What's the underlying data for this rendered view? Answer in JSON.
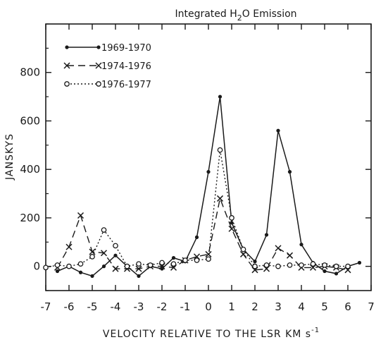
{
  "chart_data": {
    "type": "line",
    "title_parts": [
      "Integrated H",
      "2",
      "O  Emission"
    ],
    "xlabel": "VELOCITY   RELATIVE TO THE LSR   KM s",
    "xlabel_sup": "-1",
    "ylabel": "JANSKYS",
    "xlim": [
      -7,
      7
    ],
    "ylim": [
      -100,
      1000
    ],
    "xticks": [
      -7,
      -6,
      -5,
      -4,
      -3,
      -2,
      -1,
      0,
      1,
      2,
      3,
      4,
      5,
      6,
      7
    ],
    "xtick_labels": [
      "-7",
      "-6",
      "-5",
      "-4",
      "-3",
      "-2",
      "-1",
      "0",
      "1",
      "2",
      "3",
      "4",
      "5",
      "6",
      "7"
    ],
    "yticks": [
      0,
      200,
      400,
      600,
      800
    ],
    "ytick_labels": [
      "0",
      "200",
      "400",
      "600",
      "800"
    ],
    "grid": false,
    "legend_position": "top-left",
    "series": [
      {
        "name": "1969-1970",
        "style": "solid",
        "marker": "dot",
        "points": [
          [
            -6.5,
            -20
          ],
          [
            -6.0,
            0
          ],
          [
            -5.5,
            -25
          ],
          [
            -5.0,
            -40
          ],
          [
            -4.5,
            0
          ],
          [
            -4.0,
            45
          ],
          [
            -3.5,
            0
          ],
          [
            -3.0,
            -40
          ],
          [
            -2.5,
            0
          ],
          [
            -2.0,
            -10
          ],
          [
            -1.5,
            35
          ],
          [
            -1.0,
            20
          ],
          [
            -0.5,
            120
          ],
          [
            0.0,
            390
          ],
          [
            0.5,
            700
          ],
          [
            1.0,
            180
          ],
          [
            1.5,
            70
          ],
          [
            2.0,
            20
          ],
          [
            2.5,
            130
          ],
          [
            3.0,
            560
          ],
          [
            3.5,
            390
          ],
          [
            4.0,
            90
          ],
          [
            4.5,
            15
          ],
          [
            5.0,
            -20
          ],
          [
            5.5,
            -30
          ],
          [
            6.0,
            0
          ],
          [
            6.5,
            15
          ]
        ]
      },
      {
        "name": "1974-1976",
        "style": "dashed",
        "marker": "x",
        "points": [
          [
            -6.5,
            -5
          ],
          [
            -6.0,
            80
          ],
          [
            -5.5,
            210
          ],
          [
            -5.0,
            60
          ],
          [
            -4.5,
            55
          ],
          [
            -4.0,
            -10
          ],
          [
            -3.5,
            -10
          ],
          [
            -3.0,
            -10
          ],
          [
            -2.5,
            0
          ],
          [
            -2.0,
            0
          ],
          [
            -1.5,
            -5
          ],
          [
            -1.0,
            25
          ],
          [
            -0.5,
            40
          ],
          [
            0.0,
            50
          ],
          [
            0.5,
            280
          ],
          [
            1.0,
            155
          ],
          [
            1.5,
            50
          ],
          [
            2.0,
            -15
          ],
          [
            2.5,
            -10
          ],
          [
            3.0,
            75
          ],
          [
            3.5,
            45
          ],
          [
            4.0,
            -5
          ],
          [
            4.5,
            -5
          ],
          [
            5.0,
            0
          ],
          [
            5.5,
            -5
          ],
          [
            6.0,
            -15
          ]
        ]
      },
      {
        "name": "1976-1977",
        "style": "dotted",
        "marker": "circle",
        "points": [
          [
            -7.0,
            -5
          ],
          [
            -6.5,
            5
          ],
          [
            -6.0,
            0
          ],
          [
            -5.5,
            10
          ],
          [
            -5.0,
            40
          ],
          [
            -4.5,
            150
          ],
          [
            -4.0,
            85
          ],
          [
            -3.5,
            0
          ],
          [
            -3.0,
            10
          ],
          [
            -2.5,
            5
          ],
          [
            -2.0,
            15
          ],
          [
            -1.5,
            10
          ],
          [
            -1.0,
            25
          ],
          [
            -0.5,
            25
          ],
          [
            0.0,
            30
          ],
          [
            0.5,
            480
          ],
          [
            1.0,
            200
          ],
          [
            1.5,
            70
          ],
          [
            2.0,
            0
          ],
          [
            2.5,
            5
          ],
          [
            3.0,
            0
          ],
          [
            3.5,
            5
          ],
          [
            4.0,
            5
          ],
          [
            4.5,
            10
          ],
          [
            5.0,
            5
          ],
          [
            5.5,
            0
          ],
          [
            6.0,
            0
          ]
        ]
      }
    ]
  }
}
